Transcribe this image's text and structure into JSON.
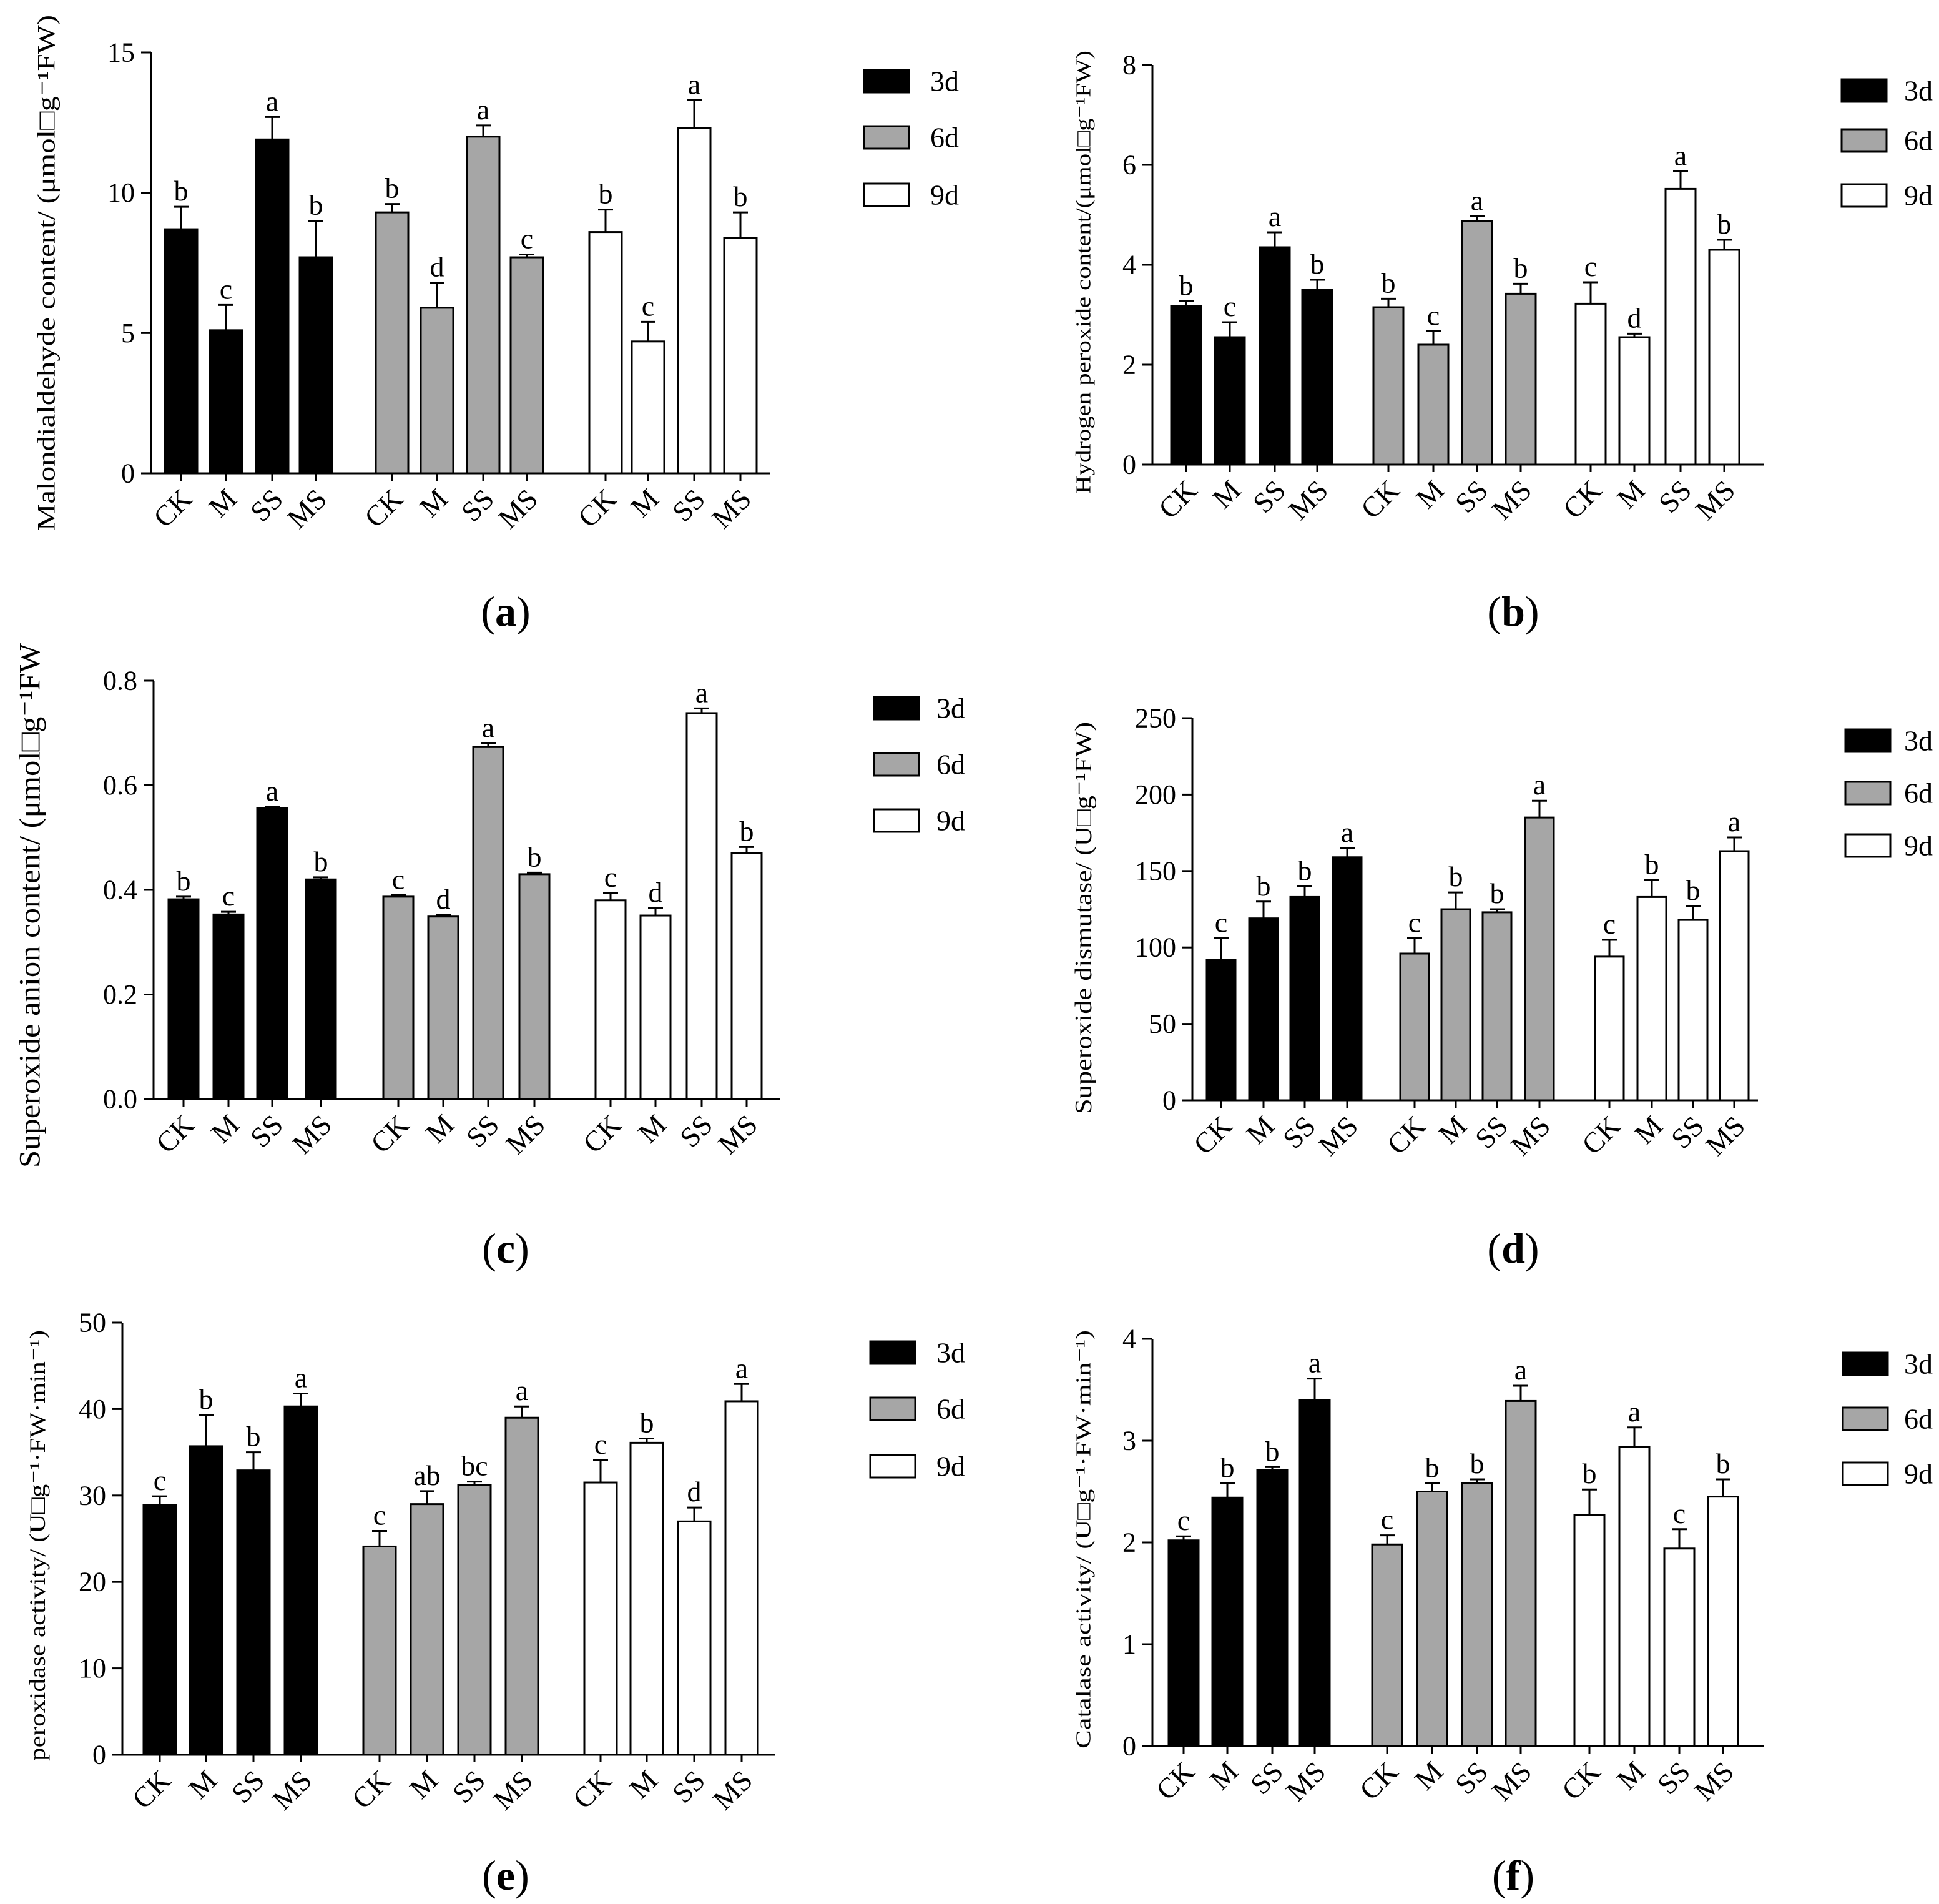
{
  "chart_data": [
    {
      "type": "bar",
      "panel_label": "(a)",
      "ylabel": "Malondialdehyde content/ (μmol□g⁻¹FW)",
      "xlabel": "",
      "ylim": [
        0,
        15
      ],
      "yticks": [
        0,
        5,
        10,
        15
      ],
      "ytick_labels": [
        "0",
        "5",
        "10",
        "15"
      ],
      "categories": [
        "CK",
        "M",
        "SS",
        "MS"
      ],
      "series": [
        {
          "name": "3d",
          "color": "#000000",
          "values": [
            8.7,
            5.1,
            11.9,
            7.7
          ],
          "errors": [
            0.8,
            0.9,
            0.8,
            1.3
          ],
          "letters": [
            "b",
            "c",
            "a",
            "b"
          ]
        },
        {
          "name": "6d",
          "color": "#a6a6a6",
          "values": [
            9.3,
            5.9,
            12.0,
            7.7
          ],
          "errors": [
            0.3,
            0.9,
            0.4,
            0.1
          ],
          "letters": [
            "b",
            "d",
            "a",
            "c"
          ]
        },
        {
          "name": "9d",
          "color": "#ffffff",
          "values": [
            8.6,
            4.7,
            12.3,
            8.4
          ],
          "errors": [
            0.8,
            0.7,
            1.0,
            0.9
          ],
          "letters": [
            "b",
            "c",
            "a",
            "b"
          ]
        }
      ]
    },
    {
      "type": "bar",
      "panel_label": "(b)",
      "ylabel": "Hydrogen peroxide content/(μmol□g⁻¹FW)",
      "xlabel": "",
      "ylim": [
        0,
        8
      ],
      "yticks": [
        0,
        2,
        4,
        6,
        8
      ],
      "ytick_labels": [
        "0",
        "2",
        "4",
        "6",
        "8"
      ],
      "categories": [
        "CK",
        "M",
        "SS",
        "MS"
      ],
      "series": [
        {
          "name": "3d",
          "color": "#000000",
          "values": [
            3.17,
            2.55,
            4.35,
            3.5
          ],
          "errors": [
            0.1,
            0.3,
            0.3,
            0.2
          ],
          "letters": [
            "b",
            "c",
            "a",
            "b"
          ]
        },
        {
          "name": "6d",
          "color": "#a6a6a6",
          "values": [
            3.15,
            2.4,
            4.87,
            3.42
          ],
          "errors": [
            0.17,
            0.27,
            0.1,
            0.2
          ],
          "letters": [
            "b",
            "c",
            "a",
            "b"
          ]
        },
        {
          "name": "9d",
          "color": "#ffffff",
          "values": [
            3.22,
            2.55,
            5.52,
            4.3
          ],
          "errors": [
            0.43,
            0.07,
            0.35,
            0.2
          ],
          "letters": [
            "c",
            "d",
            "a",
            "b"
          ]
        }
      ]
    },
    {
      "type": "bar",
      "panel_label": "(c)",
      "ylabel": "Superoxide anion content/ (μmol□g⁻¹FW",
      "xlabel": "",
      "ylim": [
        0,
        0.8
      ],
      "yticks": [
        0,
        0.2,
        0.4,
        0.6,
        0.8
      ],
      "ytick_labels": [
        "0.0",
        "0.2",
        "0.4",
        "0.6",
        "0.8"
      ],
      "categories": [
        "CK",
        "M",
        "SS",
        "MS"
      ],
      "series": [
        {
          "name": "3d",
          "color": "#000000",
          "values": [
            0.382,
            0.353,
            0.556,
            0.42
          ],
          "errors": [
            0.005,
            0.005,
            0.003,
            0.004
          ],
          "letters": [
            "b",
            "c",
            "a",
            "b"
          ]
        },
        {
          "name": "6d",
          "color": "#a6a6a6",
          "values": [
            0.387,
            0.349,
            0.673,
            0.43
          ],
          "errors": [
            0.003,
            0.003,
            0.007,
            0.003
          ],
          "letters": [
            "c",
            "d",
            "a",
            "b"
          ]
        },
        {
          "name": "9d",
          "color": "#ffffff",
          "values": [
            0.38,
            0.351,
            0.738,
            0.47
          ],
          "errors": [
            0.014,
            0.014,
            0.009,
            0.012
          ],
          "letters": [
            "c",
            "d",
            "a",
            "b"
          ]
        }
      ]
    },
    {
      "type": "bar",
      "panel_label": "(d)",
      "ylabel": "Superoxide dismutase/ (U□g⁻¹FW)",
      "xlabel": "",
      "ylim": [
        0,
        250
      ],
      "yticks": [
        0,
        50,
        100,
        150,
        200,
        250
      ],
      "ytick_labels": [
        "0",
        "50",
        "100",
        "150",
        "200",
        "250"
      ],
      "categories": [
        "CK",
        "M",
        "SS",
        "MS"
      ],
      "series": [
        {
          "name": "3d",
          "color": "#000000",
          "values": [
            92,
            119,
            133,
            159
          ],
          "errors": [
            14,
            11,
            7,
            6
          ],
          "letters": [
            "c",
            "b",
            "b",
            "a"
          ]
        },
        {
          "name": "6d",
          "color": "#a6a6a6",
          "values": [
            96,
            125,
            123,
            185
          ],
          "errors": [
            10,
            11,
            2,
            11
          ],
          "letters": [
            "c",
            "b",
            "b",
            "a"
          ]
        },
        {
          "name": "9d",
          "color": "#ffffff",
          "values": [
            94,
            133,
            118,
            163
          ],
          "errors": [
            11,
            11,
            9,
            9
          ],
          "letters": [
            "c",
            "b",
            "b",
            "a"
          ]
        }
      ]
    },
    {
      "type": "bar",
      "panel_label": "(e)",
      "ylabel": "peroxidase activity/ (U□g⁻¹·FW·min⁻¹)",
      "xlabel": "",
      "ylim": [
        0,
        50
      ],
      "yticks": [
        0,
        10,
        20,
        30,
        40,
        50
      ],
      "ytick_labels": [
        "0",
        "10",
        "20",
        "30",
        "40",
        "50"
      ],
      "categories": [
        "CK",
        "M",
        "SS",
        "MS"
      ],
      "series": [
        {
          "name": "3d",
          "color": "#000000",
          "values": [
            28.9,
            35.7,
            32.9,
            40.3
          ],
          "errors": [
            1.0,
            3.6,
            2.1,
            1.5
          ],
          "letters": [
            "c",
            "b",
            "b",
            "a"
          ]
        },
        {
          "name": "6d",
          "color": "#a6a6a6",
          "values": [
            24.1,
            29.0,
            31.2,
            39.0
          ],
          "errors": [
            1.8,
            1.5,
            0.4,
            1.3
          ],
          "letters": [
            "c",
            "ab",
            "bc",
            "a"
          ]
        },
        {
          "name": "9d",
          "color": "#ffffff",
          "values": [
            31.5,
            36.1,
            27.0,
            40.9
          ],
          "errors": [
            2.6,
            0.5,
            1.6,
            2.0
          ],
          "letters": [
            "c",
            "b",
            "d",
            "a"
          ]
        }
      ]
    },
    {
      "type": "bar",
      "panel_label": "(f)",
      "ylabel": "Catalase activity/ (U□g⁻¹·FW·min⁻¹)",
      "xlabel": "",
      "ylim": [
        0,
        4
      ],
      "yticks": [
        0,
        1,
        2,
        3,
        4
      ],
      "ytick_labels": [
        "0",
        "1",
        "2",
        "3",
        "4"
      ],
      "categories": [
        "CK",
        "M",
        "SS",
        "MS"
      ],
      "series": [
        {
          "name": "3d",
          "color": "#000000",
          "values": [
            2.02,
            2.44,
            2.71,
            3.4
          ],
          "errors": [
            0.04,
            0.14,
            0.03,
            0.21
          ],
          "letters": [
            "c",
            "b",
            "b",
            "a"
          ]
        },
        {
          "name": "6d",
          "color": "#a6a6a6",
          "values": [
            1.98,
            2.5,
            2.58,
            3.39
          ],
          "errors": [
            0.09,
            0.08,
            0.04,
            0.15
          ],
          "letters": [
            "c",
            "b",
            "b",
            "a"
          ]
        },
        {
          "name": "9d",
          "color": "#ffffff",
          "values": [
            2.27,
            2.94,
            1.94,
            2.45
          ],
          "errors": [
            0.25,
            0.19,
            0.19,
            0.17
          ],
          "letters": [
            "b",
            "a",
            "c",
            "b"
          ]
        }
      ]
    }
  ]
}
